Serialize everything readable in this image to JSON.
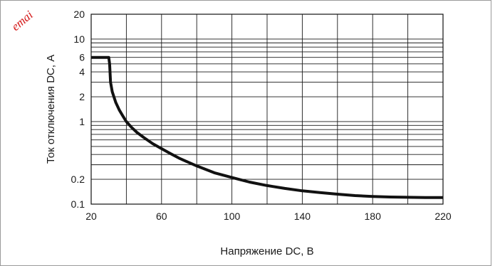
{
  "watermark": {
    "text": "emai",
    "color": "#d41818"
  },
  "chart_data": {
    "type": "line",
    "title": "",
    "xlabel": "Напряжение DC, В",
    "ylabel": "Ток отключения DC, А",
    "xlim": [
      20,
      220
    ],
    "ylim": [
      0.1,
      20
    ],
    "yscale": "log",
    "x_ticks": [
      20,
      60,
      100,
      140,
      180,
      220
    ],
    "y_ticks": [
      0.1,
      0.2,
      1,
      2,
      4,
      6,
      10,
      20
    ],
    "grid": true,
    "line_color": "#111111",
    "series": [
      {
        "x": [
          20,
          30,
          30.5,
          31,
          32,
          34,
          36,
          38,
          40,
          43,
          46,
          50,
          55,
          60,
          65,
          70,
          80,
          90,
          100,
          110,
          120,
          130,
          140,
          150,
          160,
          170,
          180,
          190,
          200,
          210,
          220
        ],
        "y": [
          6,
          6,
          5.0,
          3.0,
          2.3,
          1.7,
          1.38,
          1.17,
          1.0,
          0.85,
          0.74,
          0.64,
          0.54,
          0.47,
          0.41,
          0.36,
          0.29,
          0.24,
          0.21,
          0.185,
          0.168,
          0.155,
          0.145,
          0.138,
          0.132,
          0.127,
          0.124,
          0.122,
          0.121,
          0.12,
          0.12
        ]
      }
    ]
  }
}
